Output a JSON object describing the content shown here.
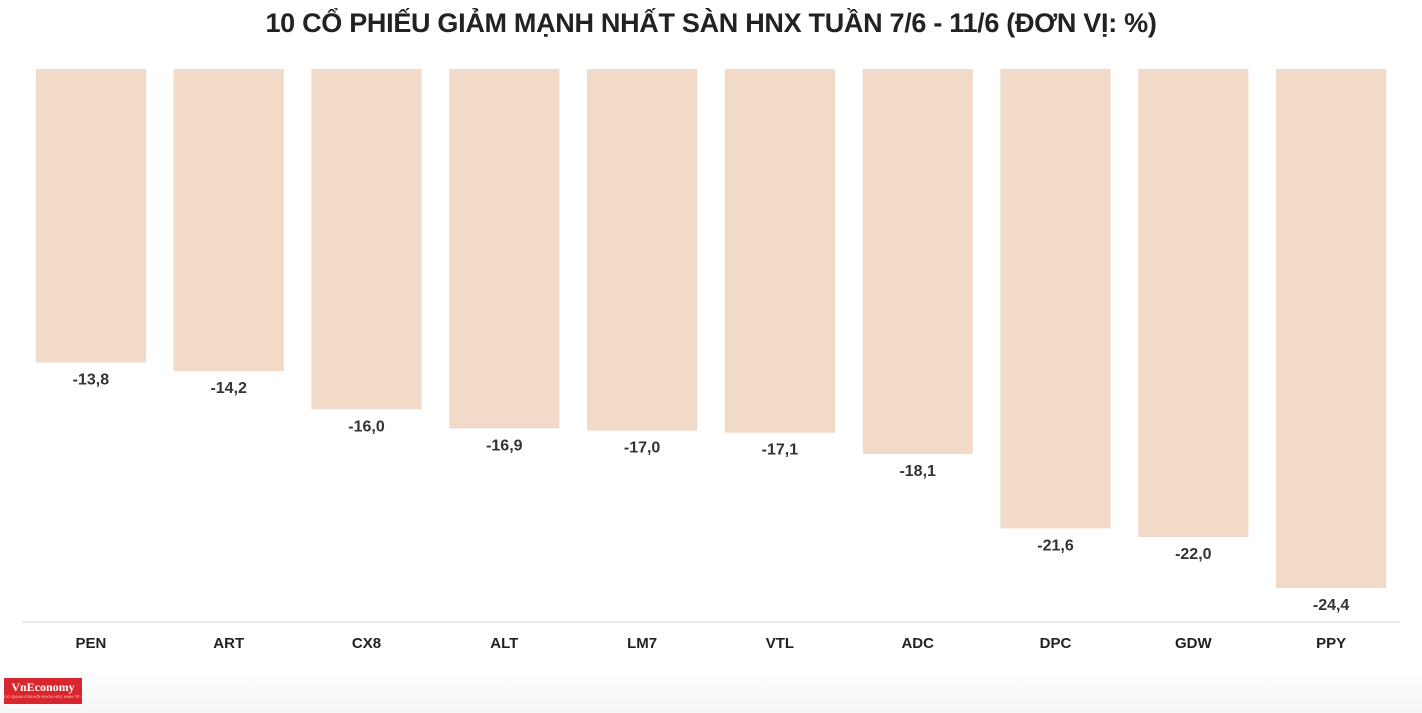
{
  "page": {
    "title": "10 CỔ PHIẾU GIẢM MẠNH NHẤT SÀN HNX TUẦN 7/6 - 11/6 (ĐƠN VỊ: %)"
  },
  "logo": {
    "name": "VnEconomy",
    "tagline": "CƠ QUAN CỦA HỘI KHOA HỌC KINH TẾ VIỆT NAM",
    "color": "#d7262e"
  },
  "colors": {
    "bar": "#f2dac9",
    "axis": "#d9d9d9",
    "label": "#333333"
  },
  "chart_data": {
    "type": "bar",
    "title": "10 CỔ PHIẾU GIẢM MẠNH NHẤT SÀN HNX TUẦN 7/6 - 11/6 (ĐƠN VỊ: %)",
    "categories": [
      "PEN",
      "ART",
      "CX8",
      "ALT",
      "LM7",
      "VTL",
      "ADC",
      "DPC",
      "GDW",
      "PPY"
    ],
    "values": [
      -13.8,
      -14.2,
      -16.0,
      -16.9,
      -17.0,
      -17.1,
      -18.1,
      -21.6,
      -22.0,
      -24.4
    ],
    "value_labels": [
      "-13,8",
      "-14,2",
      "-16,0",
      "-16,9",
      "-17,0",
      "-17,1",
      "-18,1",
      "-21,6",
      "-22,0",
      "-24,4"
    ],
    "xlabel": "",
    "ylabel": "",
    "ylim": [
      -24.4,
      0
    ],
    "grid": false,
    "legend": "none",
    "bar_direction": "downward"
  }
}
